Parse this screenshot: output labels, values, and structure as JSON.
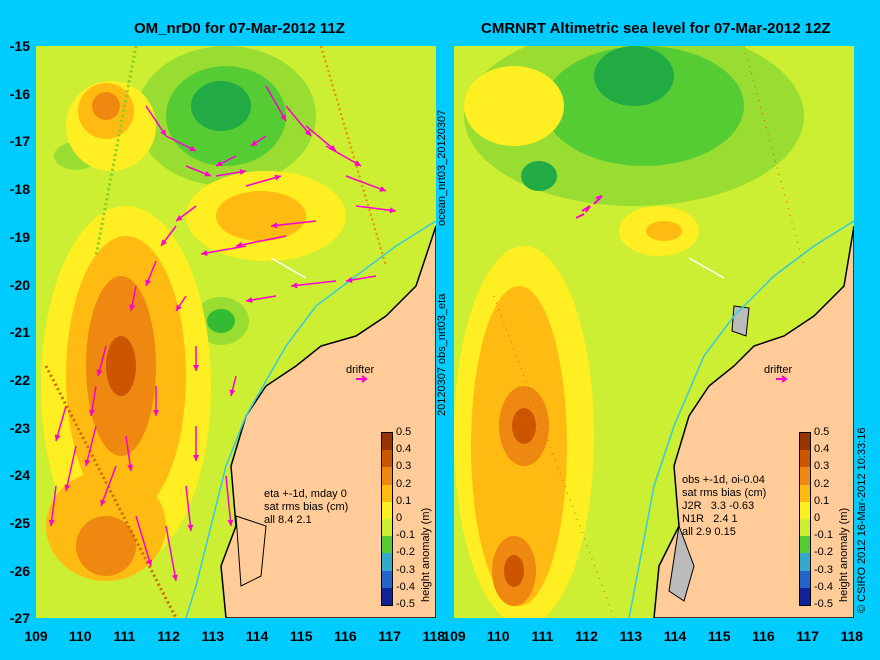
{
  "left_panel": {
    "title": "OM_nrD0 for 07-Mar-2012 11Z",
    "side_label": "ocean_nrt03_20120307",
    "note_lines": [
      "eta +-1d, mday 0",
      "sat rms bias (cm)",
      "all 8.4 2.1"
    ],
    "drifter_label": "drifter"
  },
  "right_panel": {
    "title": "CMRNRT Altimetric sea level  for 07-Mar-2012 12Z",
    "side_label": "20120307 obs_nrt03_eta",
    "note_lines": [
      "obs +-1d, oi-0.04",
      "sat rms bias (cm)",
      "J2R   3.3 -0.63",
      "N1R   2.4 1",
      "all 2.9 0.15"
    ],
    "drifter_label": "drifter",
    "credit": "© CSIRO 2012  16-Mar-2012 10:33:16"
  },
  "colorbar": {
    "label": "height anomaly (m)",
    "ticks": [
      "0.5",
      "0.4",
      "0.3",
      "0.2",
      "0.1",
      "0",
      "-0.1",
      "-0.2",
      "-0.3",
      "-0.4",
      "-0.5"
    ]
  },
  "axes": {
    "y_ticks": [
      "-15",
      "-16",
      "-17",
      "-18",
      "-19",
      "-20",
      "-21",
      "-22",
      "-23",
      "-24",
      "-25",
      "-26",
      "-27"
    ],
    "left_x_ticks": [
      "109",
      "110",
      "111",
      "112",
      "113",
      "114",
      "115",
      "116",
      "117",
      "118"
    ],
    "right_x_ticks": [
      "109",
      "110",
      "111",
      "112",
      "113",
      "114",
      "115",
      "116",
      "117",
      "118"
    ]
  },
  "colors": {
    "background": "#00ccff",
    "land": "#ffcc99",
    "sea_base": "#ccee33",
    "high_anomaly": "#cc5500",
    "low_anomaly": "#00aa33",
    "velocity_arrows": "#ff00cc",
    "coastline": "#000000"
  }
}
